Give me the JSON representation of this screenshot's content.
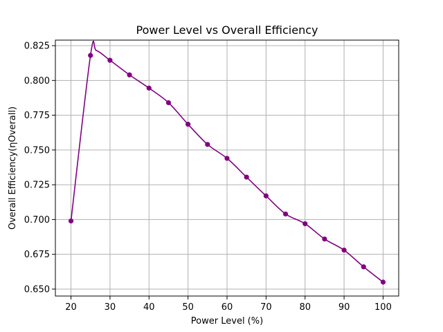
{
  "chart_data": {
    "type": "line",
    "title": "Power Level vs Overall Efficiency",
    "xlabel": "Power Level (%)",
    "ylabel": "Overall Efficiency(ηOverall)",
    "xlim": [
      16,
      104
    ],
    "ylim": [
      0.645,
      0.829
    ],
    "xticks": [
      20,
      30,
      40,
      50,
      60,
      70,
      80,
      90,
      100
    ],
    "yticks": [
      0.65,
      0.675,
      0.7,
      0.725,
      0.75,
      0.775,
      0.8,
      0.825
    ],
    "ytick_labels": [
      "0.650",
      "0.675",
      "0.700",
      "0.725",
      "0.750",
      "0.775",
      "0.800",
      "0.825"
    ],
    "grid": true,
    "color": "#800080",
    "series": [
      {
        "x": [
          20,
          25,
          30,
          35,
          40,
          45,
          50,
          55,
          60,
          65,
          70,
          75,
          80,
          85,
          90,
          95,
          100
        ],
        "y": [
          0.699,
          0.818,
          0.8145,
          0.804,
          0.7945,
          0.784,
          0.7685,
          0.754,
          0.744,
          0.7305,
          0.717,
          0.704,
          0.697,
          0.686,
          0.678,
          0.666,
          0.655
        ]
      }
    ],
    "smooth_curve_extra_peak": [
      26.5,
      0.8215
    ]
  }
}
